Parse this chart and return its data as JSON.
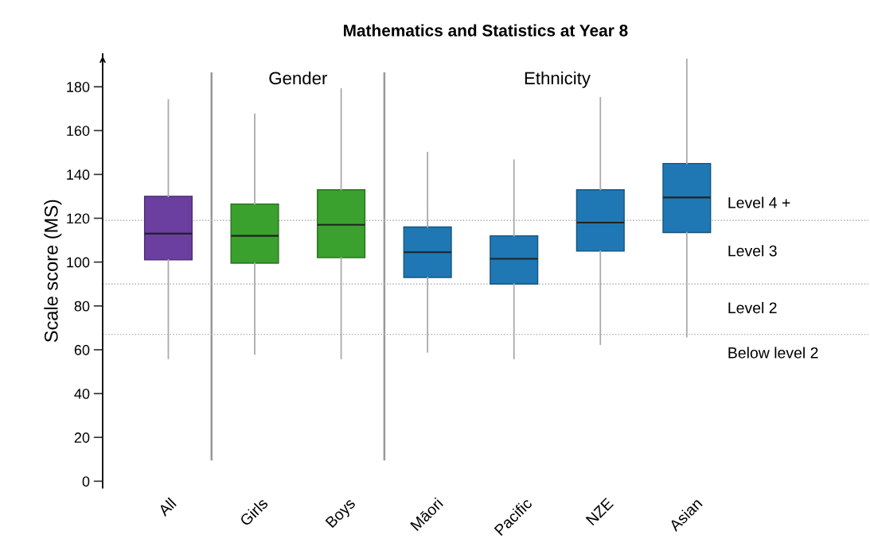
{
  "chart_data": {
    "type": "box",
    "title": "Mathematics and Statistics at Year 8",
    "ylabel": "Scale score (MS)",
    "categories": [
      "All",
      "Girls",
      "Boys",
      "Māori",
      "Pacific",
      "NZE",
      "Asian"
    ],
    "boxes": [
      {
        "low": 56,
        "q1": 101,
        "median": 113,
        "q3": 130,
        "high": 174
      },
      {
        "low": 58,
        "q1": 99.5,
        "median": 112,
        "q3": 126.5,
        "high": 167.5
      },
      {
        "low": 56,
        "q1": 102,
        "median": 117,
        "q3": 133,
        "high": 179
      },
      {
        "low": 59,
        "q1": 93,
        "median": 104.5,
        "q3": 116,
        "high": 150
      },
      {
        "low": 56,
        "q1": 90,
        "median": 101.5,
        "q3": 112,
        "high": 146.5
      },
      {
        "low": 62.5,
        "q1": 105,
        "median": 118,
        "q3": 133,
        "high": 175
      },
      {
        "low": 66,
        "q1": 113.5,
        "median": 129.5,
        "q3": 145,
        "high": 192.5
      }
    ],
    "colors": [
      "#6b3fa0",
      "#3aa02e",
      "#3aa02e",
      "#1f78b4",
      "#1f78b4",
      "#1f78b4",
      "#1f78b4"
    ],
    "ylim": [
      -3,
      195
    ],
    "yticks": [
      0,
      20,
      40,
      60,
      80,
      100,
      120,
      140,
      160,
      180
    ],
    "ref_lines": [
      {
        "axis": "y",
        "value": 119,
        "color": "#aaaaaa",
        "line_style": "dotted"
      },
      {
        "axis": "y",
        "value": 90,
        "color": "#aaaaaa",
        "line_style": "dotted"
      },
      {
        "axis": "y",
        "value": 67,
        "color": "#aaaaaa",
        "line_style": "dotted"
      }
    ],
    "annotations": [
      "Gender",
      "Ethnicity",
      "Level 4 +",
      "Level 3",
      "Level 2",
      "Below level 2"
    ],
    "grid": false,
    "legend": false
  }
}
